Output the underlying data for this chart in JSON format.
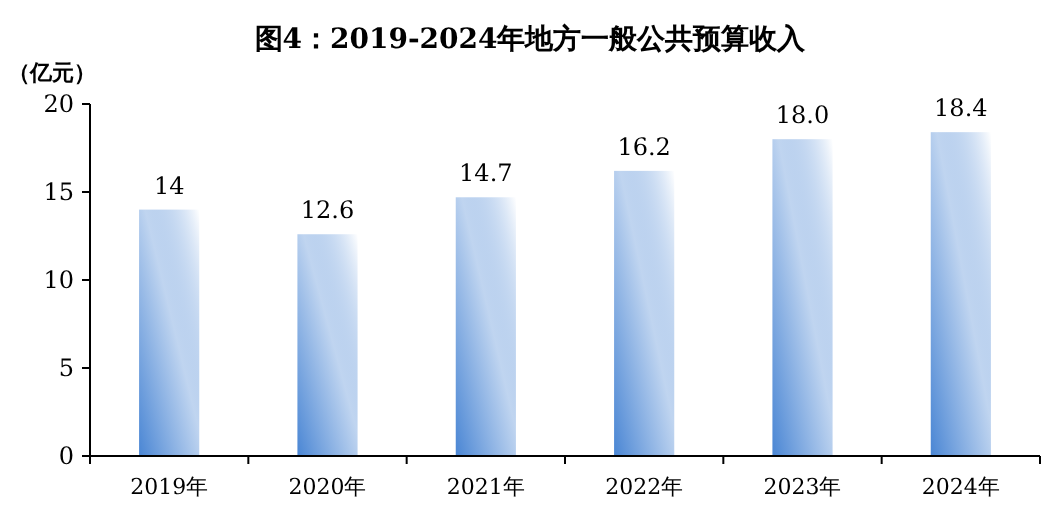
{
  "chart_data": {
    "type": "bar",
    "title": "图4：2019-2024年地方一般公共预算收入",
    "ylabel": "（亿元）",
    "categories": [
      "2019年",
      "2020年",
      "2021年",
      "2022年",
      "2023年",
      "2024年"
    ],
    "values": [
      14,
      12.6,
      14.7,
      16.2,
      18.0,
      18.4
    ],
    "value_labels": [
      "14",
      "12.6",
      "14.7",
      "16.2",
      "18.0",
      "18.4"
    ],
    "color": "#4a86d4",
    "ylim": [
      0,
      20
    ],
    "yticks": [
      0,
      5,
      10,
      15,
      20
    ],
    "grid": false
  }
}
